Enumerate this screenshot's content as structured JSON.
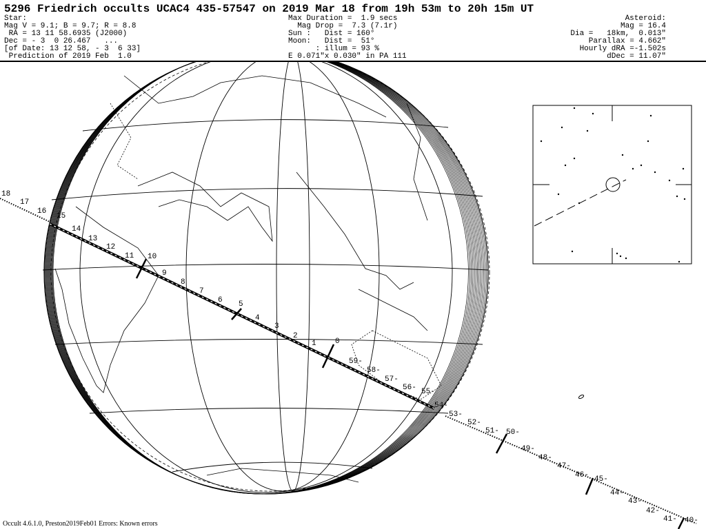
{
  "header": {
    "title": "5296 Friedrich occults UCAC4 435-57547 on 2019 Mar 18 from 19h 53m to 20h 15m UT",
    "star": [
      "Star:",
      "Mag V = 9.1; B = 9.7; R = 8.8",
      " RA = 13 11 58.6935 (J2000)",
      "Dec = - 3  0 26.467   ...",
      "[of Date: 13 12 58, - 3  6 33]",
      " Prediction of 2019 Feb  1.0"
    ],
    "event": [
      "Max Duration =  1.9 secs",
      "  Mag Drop =  7.3 (7.1r)",
      "Sun :   Dist = 160°",
      "Moon:   Dist =  51°",
      "      : illum = 93 %",
      "E 0.071\"x 0.030\" in PA 111"
    ],
    "asteroid": [
      "Asteroid:",
      "Mag = 16.4",
      "Dia =   18km,  0.013\"",
      "Parallax = 4.662\"",
      "Hourly dRA =-1.502s",
      "dDec = 11.07\""
    ]
  },
  "path_labels": [
    "18",
    "17",
    "16",
    "15",
    "14",
    "13",
    "12",
    "11",
    "10",
    "9",
    "8",
    "7",
    "6",
    "5",
    "4",
    "3",
    "2",
    "1",
    "0",
    "59-",
    "58-",
    "57-",
    "56-",
    "55-",
    "54-",
    "53-",
    "52-",
    "51-",
    "50-",
    "49-",
    "48-",
    "47-",
    "46-",
    "45-",
    "44-",
    "43-",
    "42-",
    "41-",
    "40-"
  ],
  "footer": "Occult 4.6.1.0, Preston2019Feb01  Errors: Known errors"
}
